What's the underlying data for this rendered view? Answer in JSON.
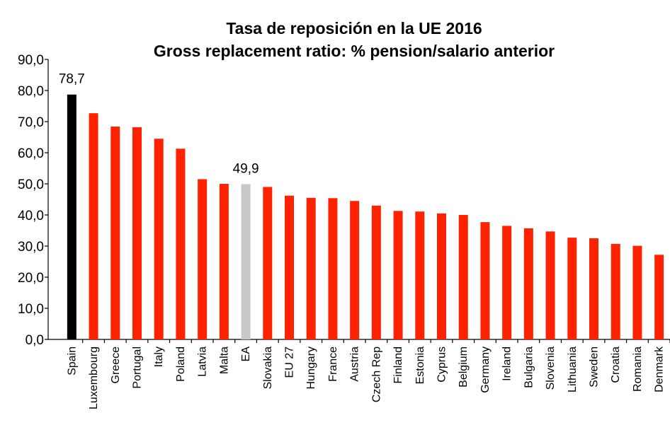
{
  "chart_data": {
    "type": "bar",
    "title": "Tasa de reposición en la UE 2016",
    "subtitle": "Gross replacement ratio: % pension/salario anterior",
    "categories": [
      "Spain",
      "Luxembourg",
      "Greece",
      "Portugal",
      "Italy",
      "Poland",
      "Latvia",
      "Malta",
      "EA",
      "Slovakia",
      "EU 27",
      "Hungary",
      "France",
      "Austria",
      "Czech Rep",
      "Finland",
      "Estonia",
      "Cyprus",
      "Belgium",
      "Germany",
      "Ireland",
      "Bulgaria",
      "Slovenia",
      "Lithuania",
      "Sweden",
      "Croatia",
      "Romania",
      "Denmark"
    ],
    "values": [
      78.7,
      72.7,
      68.4,
      68.2,
      64.5,
      61.3,
      51.5,
      50.0,
      49.9,
      49.0,
      46.2,
      45.5,
      45.4,
      44.5,
      43.0,
      41.3,
      41.1,
      40.5,
      40.0,
      37.7,
      36.5,
      35.7,
      34.7,
      32.7,
      32.5,
      30.7,
      30.1,
      27.2
    ],
    "value_labels": [
      "78,7",
      null,
      null,
      null,
      null,
      null,
      null,
      null,
      "49,9",
      null,
      null,
      null,
      null,
      null,
      null,
      null,
      null,
      null,
      null,
      null,
      null,
      null,
      null,
      null,
      null,
      null,
      null,
      null
    ],
    "colors": [
      "#000000",
      "#ff2200",
      "#ff2200",
      "#ff2200",
      "#ff2200",
      "#ff2200",
      "#ff2200",
      "#ff2200",
      "#c8c8c8",
      "#ff2200",
      "#ff2200",
      "#ff2200",
      "#ff2200",
      "#ff2200",
      "#ff2200",
      "#ff2200",
      "#ff2200",
      "#ff2200",
      "#ff2200",
      "#ff2200",
      "#ff2200",
      "#ff2200",
      "#ff2200",
      "#ff2200",
      "#ff2200",
      "#ff2200",
      "#ff2200",
      "#ff2200"
    ],
    "ylim": [
      0,
      90
    ],
    "yticks": [
      {
        "value": 0,
        "label": "0,0"
      },
      {
        "value": 10,
        "label": "10,0"
      },
      {
        "value": 20,
        "label": "20,0"
      },
      {
        "value": 30,
        "label": "30,0"
      },
      {
        "value": 40,
        "label": "40,0"
      },
      {
        "value": 50,
        "label": "50,0"
      },
      {
        "value": 60,
        "label": "60,0"
      },
      {
        "value": 70,
        "label": "70,0"
      },
      {
        "value": 80,
        "label": "80,0"
      },
      {
        "value": 90,
        "label": "90,0"
      }
    ],
    "grid": false
  }
}
